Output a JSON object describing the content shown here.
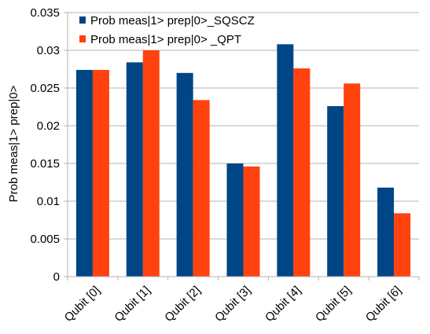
{
  "chart_data": {
    "type": "bar",
    "title": "",
    "xlabel": "",
    "ylabel": "Prob meas|1> prep|0>",
    "categories": [
      "Qubit [0]",
      "Qubit [1]",
      "Qubit [2]",
      "Qubit [3]",
      "Qubit [4]",
      "Qubit [5]",
      "Qubit [6]"
    ],
    "series": [
      {
        "name": "Prob meas|1> prep|0>_SQSCZ",
        "color": "#004586",
        "values": [
          0.0274,
          0.0284,
          0.027,
          0.015,
          0.0308,
          0.0226,
          0.0118
        ]
      },
      {
        "name": "Prob meas|1> prep|0> _QPT",
        "color": "#FF420E",
        "values": [
          0.0274,
          0.03,
          0.0234,
          0.0146,
          0.0276,
          0.0256,
          0.0084
        ]
      }
    ],
    "ylim": [
      0,
      0.035
    ],
    "yticks": [
      "0",
      "0.005",
      "0.01",
      "0.015",
      "0.02",
      "0.025",
      "0.03",
      "0.035"
    ],
    "grid": true,
    "legend_position": "top-left"
  }
}
